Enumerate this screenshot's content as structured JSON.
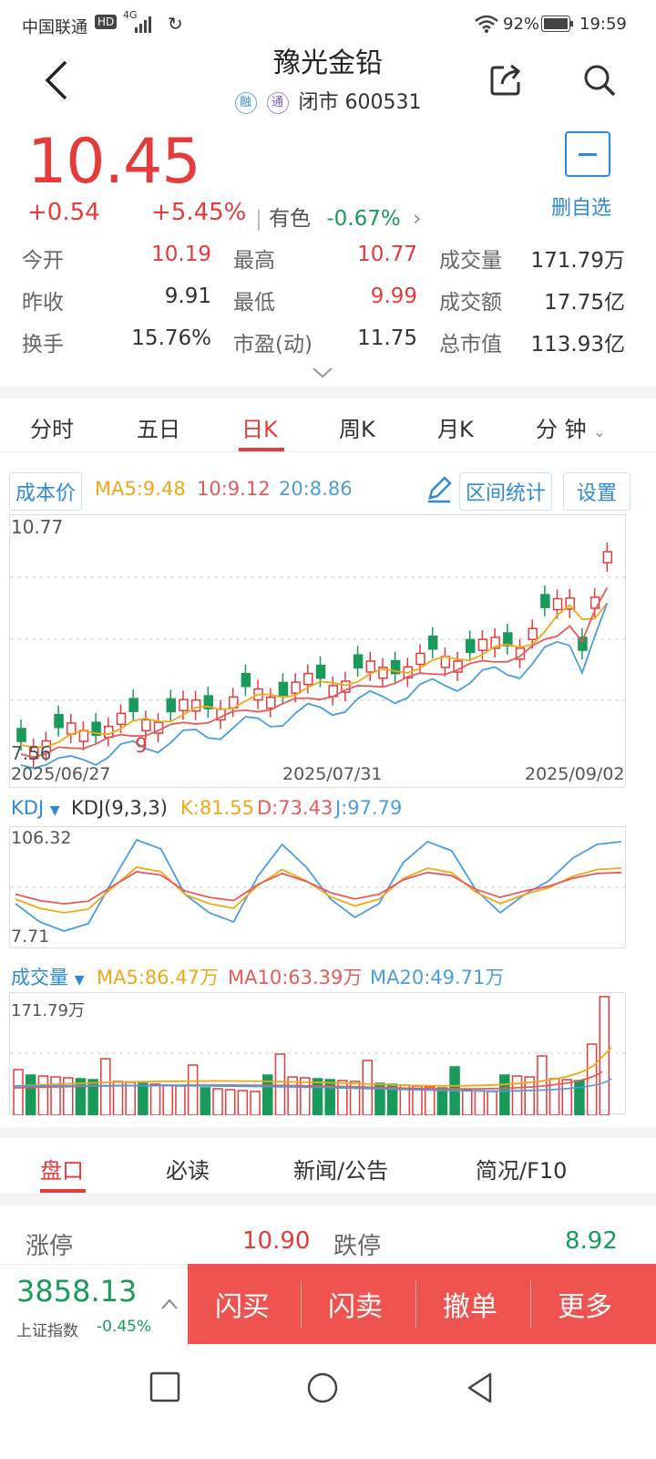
{
  "status": {
    "carrier": "中国联通",
    "hd": "HD",
    "net": "4G",
    "battery": "92%",
    "time": "19:59"
  },
  "header": {
    "title": "豫光金铅",
    "badge1": "融",
    "badge2": "通",
    "status_text": "闭市",
    "code": "600531"
  },
  "quote": {
    "price": "10.45",
    "change": "+0.54",
    "change_pct": "+5.45%",
    "sector": "有色",
    "sector_pct": "-0.67%",
    "watch_label": "删自选",
    "rows": [
      [
        {
          "k": "今开",
          "v": "10.19",
          "c": "red"
        },
        {
          "k": "最高",
          "v": "10.77",
          "c": "red"
        },
        {
          "k": "成交量",
          "v": "171.79万",
          "c": "dark"
        }
      ],
      [
        {
          "k": "昨收",
          "v": "9.91",
          "c": "dark"
        },
        {
          "k": "最低",
          "v": "9.99",
          "c": "red"
        },
        {
          "k": "成交额",
          "v": "17.75亿",
          "c": "dark"
        }
      ],
      [
        {
          "k": "换手",
          "v": "15.76%",
          "c": "dark"
        },
        {
          "k": "市盈(动)",
          "v": "11.75",
          "c": "dark"
        },
        {
          "k": "总市值",
          "v": "113.93亿",
          "c": "dark"
        }
      ]
    ]
  },
  "tabs": [
    "分时",
    "五日",
    "日K",
    "周K",
    "月K",
    "分 钟"
  ],
  "indicators": {
    "cost_btn": "成本价",
    "ma5": "MA5:9.48",
    "ma10": "10:9.12",
    "ma20": "20:8.86",
    "range_btn": "区间统计",
    "settings_btn": "设置"
  },
  "kline": {
    "ymax_label": "10.77",
    "ymin_label": "7.56",
    "low_marker": "9",
    "dates": [
      "2025/06/27",
      "2025/07/31",
      "2025/09/02"
    ]
  },
  "kdj": {
    "name": "KDJ",
    "params": "KDJ(9,3,3)",
    "k": "K:81.55",
    "d": "D:73.43",
    "j": "J:97.79",
    "ymax": "106.32",
    "ymin": "7.71"
  },
  "volume": {
    "name": "成交量",
    "ma5": "MA5:86.47万",
    "ma10": "MA10:63.39万",
    "ma20": "MA20:49.71万",
    "ymax": "171.79万"
  },
  "bottom_tabs": [
    "盘口",
    "必读",
    "新闻/公告",
    "简况/F10"
  ],
  "limits": {
    "up_label": "涨停",
    "up": "10.90",
    "down_label": "跌停",
    "down": "8.92"
  },
  "index": {
    "value": "3858.13",
    "name": "上证指数",
    "pct": "-0.45%"
  },
  "actions": [
    "闪买",
    "闪卖",
    "撤单",
    "更多"
  ],
  "colors": {
    "red": "#e63b3b",
    "green": "#1a9a5a",
    "blue": "#2f8ad6",
    "ma5": "#f0a818",
    "ma10": "#e85a5a",
    "ma20": "#4a9ee0"
  },
  "chart_data": {
    "type": "candlestick",
    "x_range": [
      "2025/06/27",
      "2025/09/02"
    ],
    "y_range": [
      7.56,
      10.77
    ],
    "close_last": 10.45,
    "kdj": {
      "K": 81.55,
      "D": 73.43,
      "J": 97.79,
      "y_range": [
        7.71,
        106.32
      ]
    },
    "volume_max": "171.79万"
  }
}
